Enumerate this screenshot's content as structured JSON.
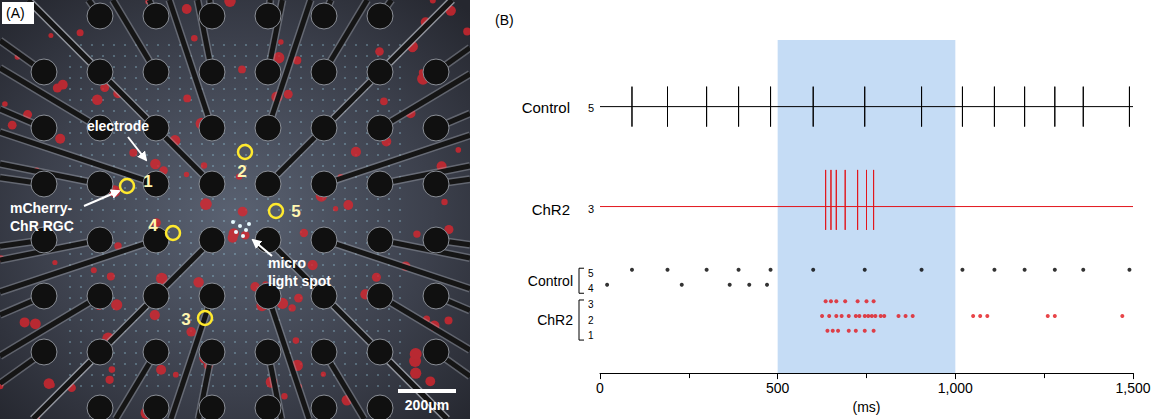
{
  "panel_a": {
    "letter": "(A)",
    "labels": {
      "electrode": "electrode",
      "cell": "mCherry-ChR RGC",
      "light_spot": "micro light spot"
    },
    "cells": [
      1,
      2,
      3,
      4,
      5
    ],
    "scale_bar": "200μm"
  },
  "chart_data": {
    "type": "raster",
    "letter": "(B)",
    "xlabel": "(ms)",
    "xlim": [
      0,
      1500
    ],
    "xticks": [
      0,
      500,
      {
        "value": 1000,
        "label": "1,000"
      },
      {
        "value": 1500,
        "label": "1,500"
      }
    ],
    "tick_labels": "x",
    "stimulus": {
      "start": 500,
      "end": 1000,
      "color": "#c5dcf5"
    },
    "traces": [
      {
        "name": "Control",
        "channel": 5,
        "color": "#000000",
        "spike_times": [
          90,
          190,
          300,
          390,
          480,
          600,
          745,
          905,
          1020,
          1110,
          1195,
          1280,
          1360,
          1490
        ]
      },
      {
        "name": "ChR2",
        "channel": 3,
        "color": "#e2161c",
        "spike_times": [
          635,
          650,
          665,
          690,
          725,
          750,
          770
        ]
      }
    ],
    "raster": [
      {
        "group": "Control",
        "color": "#000000",
        "rows": [
          {
            "channel": 5,
            "spike_times": [
              90,
              190,
              300,
              390,
              480,
              600,
              745,
              905,
              1020,
              1110,
              1195,
              1280,
              1360,
              1490
            ]
          },
          {
            "channel": 4,
            "spike_times": [
              20,
              230,
              365,
              420,
              470
            ]
          }
        ]
      },
      {
        "group": "ChR2",
        "color": "#e2161c",
        "rows": [
          {
            "channel": 3,
            "spike_times": [
              635,
              650,
              665,
              690,
              725,
              750,
              770
            ]
          },
          {
            "channel": 2,
            "spike_times": [
              625,
              645,
              665,
              680,
              700,
              720,
              730,
              745,
              755,
              765,
              775,
              790,
              800,
              840,
              860,
              880,
              1050,
              1070,
              1090,
              1260,
              1280,
              1470
            ]
          },
          {
            "channel": 1,
            "spike_times": [
              640,
              655,
              670,
              700,
              720,
              745,
              770
            ]
          }
        ]
      }
    ]
  }
}
